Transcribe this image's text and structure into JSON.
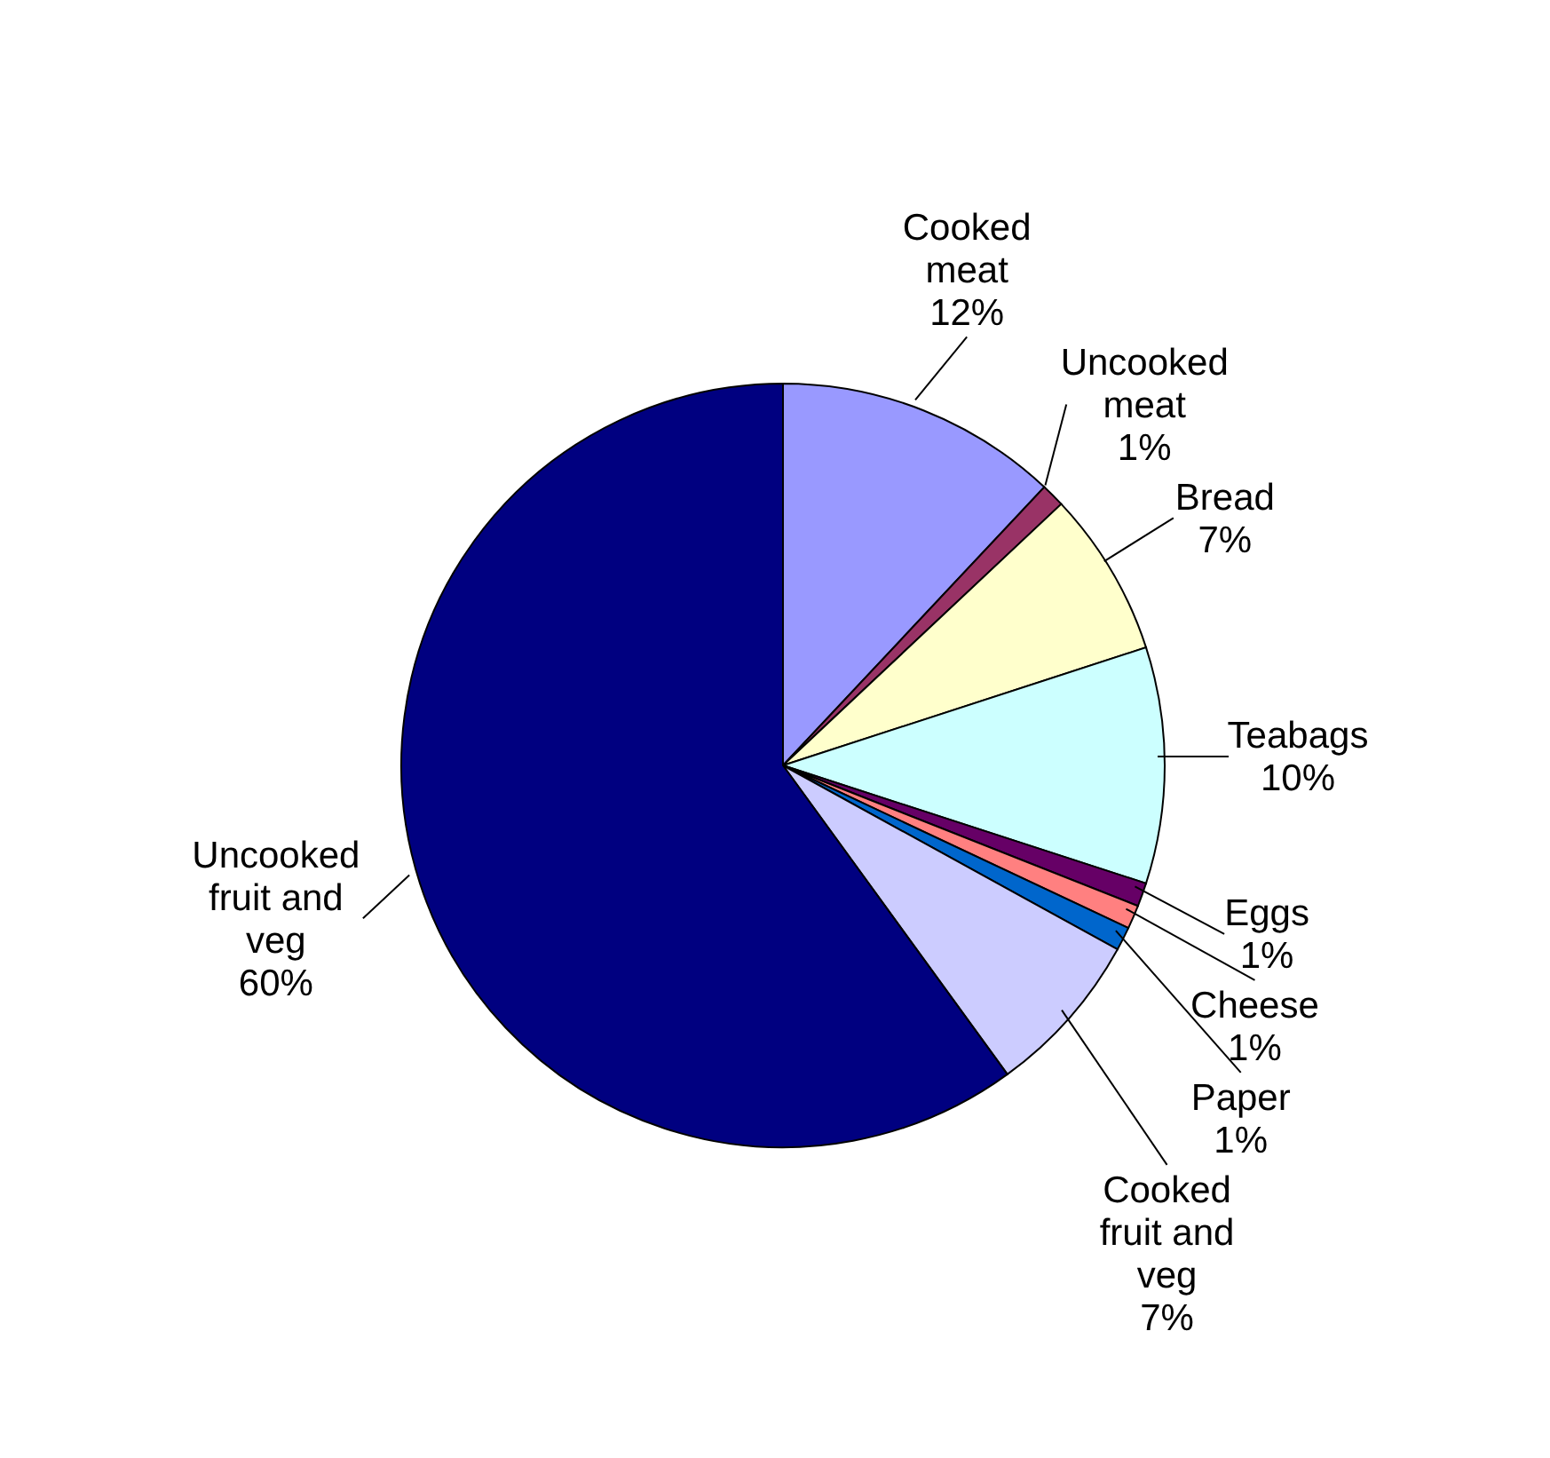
{
  "chart_data": {
    "type": "pie",
    "categories": [
      "Cooked meat",
      "Uncooked meat",
      "Bread",
      "Teabags",
      "Eggs",
      "Cheese",
      "Paper",
      "Cooked fruit and veg",
      "Uncooked fruit and veg"
    ],
    "values": [
      12,
      1,
      7,
      10,
      1,
      1,
      1,
      7,
      60
    ],
    "value_labels": [
      "12%",
      "1%",
      "7%",
      "10%",
      "1%",
      "1%",
      "1%",
      "7%",
      "60%"
    ],
    "colors": [
      "#9999ff",
      "#993366",
      "#ffffcc",
      "#ccffff",
      "#660066",
      "#ff8080",
      "#0066cc",
      "#ccccff",
      "#000080"
    ]
  }
}
